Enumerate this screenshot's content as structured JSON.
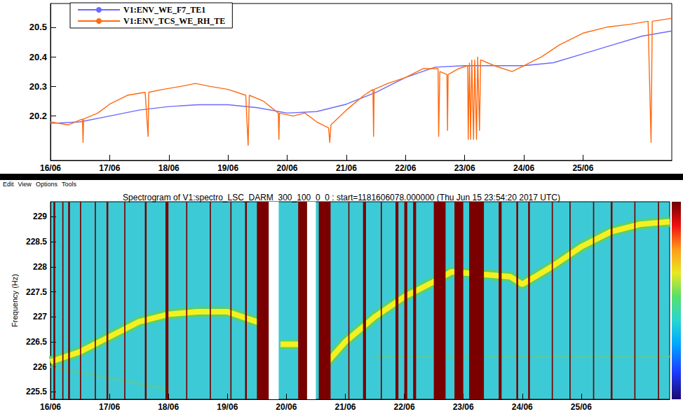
{
  "menu": [
    "Edit",
    "View",
    "Options",
    "Tools"
  ],
  "chart_data": [
    {
      "type": "line",
      "xlim": [
        16,
        26.5
      ],
      "xticks": [
        {
          "value": 16,
          "label": "16/06"
        },
        {
          "value": 17,
          "label": "17/06"
        },
        {
          "value": 18,
          "label": "18/06"
        },
        {
          "value": 19,
          "label": "19/06"
        },
        {
          "value": 20,
          "label": "20/06"
        },
        {
          "value": 21,
          "label": "21/06"
        },
        {
          "value": 22,
          "label": "22/06"
        },
        {
          "value": 23,
          "label": "23/06"
        },
        {
          "value": 24,
          "label": "24/06"
        },
        {
          "value": 25,
          "label": "25/06"
        }
      ],
      "ylim": [
        20.05,
        20.58
      ],
      "yticks": [
        20.2,
        20.3,
        20.4,
        20.5
      ],
      "grid": false,
      "legend": "top-left",
      "series": [
        {
          "name": "V1:ENV_WE_F7_TE1",
          "color": "#6a6aff",
          "x": [
            16.0,
            16.5,
            17.0,
            17.5,
            18.0,
            18.5,
            19.0,
            19.5,
            20.0,
            20.5,
            21.0,
            21.5,
            22.0,
            22.5,
            23.0,
            23.5,
            24.0,
            24.5,
            25.0,
            25.5,
            26.0,
            26.5
          ],
          "values": [
            20.175,
            20.18,
            20.2,
            20.22,
            20.232,
            20.238,
            20.238,
            20.228,
            20.21,
            20.215,
            20.24,
            20.28,
            20.33,
            20.365,
            20.37,
            20.37,
            20.37,
            20.38,
            20.41,
            20.44,
            20.47,
            20.487
          ]
        },
        {
          "name": "V1:ENV_TCS_WE_RH_TE",
          "color": "#ff6a10",
          "x": [
            16.0,
            16.3,
            16.54,
            16.55,
            16.56,
            16.8,
            17.0,
            17.3,
            17.6,
            17.65,
            17.66,
            17.9,
            18.2,
            18.45,
            18.7,
            19.0,
            19.3,
            19.34,
            19.36,
            19.6,
            19.85,
            19.86,
            19.87,
            20.1,
            20.3,
            20.5,
            20.7,
            20.72,
            20.74,
            21.0,
            21.3,
            21.45,
            21.46,
            21.47,
            21.7,
            22.0,
            22.3,
            22.55,
            22.56,
            22.58,
            22.7,
            22.71,
            22.72,
            22.9,
            23.05,
            23.06,
            23.08,
            23.1,
            23.12,
            23.15,
            23.17,
            23.2,
            23.22,
            23.25,
            23.27,
            23.5,
            23.8,
            24.0,
            24.3,
            24.6,
            25.0,
            25.4,
            25.8,
            26.1,
            26.15,
            26.17,
            26.5
          ],
          "values": [
            20.18,
            20.17,
            20.19,
            20.11,
            20.19,
            20.21,
            20.24,
            20.27,
            20.28,
            20.13,
            20.28,
            20.29,
            20.3,
            20.31,
            20.3,
            20.29,
            20.27,
            20.1,
            20.27,
            20.25,
            20.21,
            20.12,
            20.21,
            20.2,
            20.21,
            20.18,
            20.16,
            20.11,
            20.17,
            20.22,
            20.27,
            20.29,
            20.13,
            20.29,
            20.31,
            20.33,
            20.36,
            20.36,
            20.13,
            20.35,
            20.34,
            20.15,
            20.34,
            20.36,
            20.37,
            20.12,
            20.38,
            20.12,
            20.39,
            20.12,
            20.39,
            20.12,
            20.4,
            20.15,
            20.39,
            20.37,
            20.35,
            20.37,
            20.4,
            20.44,
            20.48,
            20.5,
            20.51,
            20.52,
            20.11,
            20.52,
            20.53
          ]
        }
      ]
    },
    {
      "type": "spectrogram",
      "title": "Spectrogram of V1:spectro_LSC_DARM_300_100_0_0 : start=1181606078.000000 (Thu Jun 15 23:54:20 2017 UTC)",
      "y_label": "Frequency (Hz)",
      "color": "#3ccbd6",
      "xlim": [
        16,
        26.5
      ],
      "xticks": [
        {
          "value": 16,
          "label": "16/06"
        },
        {
          "value": 17,
          "label": "17/06"
        },
        {
          "value": 18,
          "label": "18/06"
        },
        {
          "value": 19,
          "label": "19/06"
        },
        {
          "value": 20,
          "label": "20/06"
        },
        {
          "value": 21,
          "label": "21/06"
        },
        {
          "value": 22,
          "label": "22/06"
        },
        {
          "value": 23,
          "label": "23/06"
        },
        {
          "value": 24,
          "label": "24/06"
        },
        {
          "value": 25,
          "label": "25/06"
        }
      ],
      "ylim": [
        225.35,
        229.3
      ],
      "yticks": [
        225.5,
        226,
        226.5,
        227,
        227.5,
        228,
        228.5,
        229
      ],
      "grid": false,
      "tracks": [
        {
          "color": "#f5f020",
          "x": [
            16.0,
            16.5,
            17.0,
            17.5,
            18.0,
            18.5,
            19.0,
            19.5,
            19.75,
            19.8,
            19.9,
            20.2,
            20.3,
            20.7,
            21.0,
            21.5,
            22.0,
            22.5,
            22.8,
            23.3,
            23.8,
            24.0,
            24.5,
            25.0,
            25.5,
            26.0,
            26.5
          ],
          "values": [
            226.1,
            226.3,
            226.6,
            226.9,
            227.05,
            227.1,
            227.1,
            226.9,
            226.85,
            null,
            226.45,
            226.45,
            null,
            226.1,
            226.5,
            227.0,
            227.4,
            227.7,
            227.9,
            227.85,
            227.8,
            227.65,
            228.0,
            228.4,
            228.7,
            228.85,
            228.9
          ]
        },
        {
          "color": "#5cc898",
          "x": [
            16.0,
            18.0
          ],
          "values": [
            226.0,
            225.55
          ]
        },
        {
          "color": "#5cc898",
          "x": [
            21.5,
            26.5
          ],
          "values": [
            226.2,
            226.2
          ]
        }
      ],
      "bands": [
        {
          "color": "#ffffff",
          "intervals": [
            [
              19.7,
              19.87
            ],
            [
              20.35,
              20.5
            ]
          ]
        },
        {
          "color": "#7a0000",
          "intervals": [
            [
              16.05,
              16.08
            ],
            [
              16.2,
              16.22
            ],
            [
              16.3,
              16.33
            ],
            [
              16.5,
              16.52
            ],
            [
              16.75,
              16.77
            ],
            [
              16.95,
              16.98
            ],
            [
              17.25,
              17.27
            ],
            [
              17.6,
              17.63
            ],
            [
              17.95,
              18.0
            ],
            [
              18.3,
              18.32
            ],
            [
              18.7,
              18.72
            ],
            [
              19.05,
              19.07
            ],
            [
              19.3,
              19.33
            ],
            [
              19.5,
              19.7
            ],
            [
              20.2,
              20.35
            ],
            [
              20.55,
              20.75
            ],
            [
              21.05,
              21.07
            ],
            [
              21.3,
              21.35
            ],
            [
              21.6,
              21.62
            ],
            [
              21.85,
              21.9
            ],
            [
              22.0,
              22.05
            ],
            [
              22.15,
              22.2
            ],
            [
              22.5,
              22.7
            ],
            [
              22.85,
              23.0
            ],
            [
              23.1,
              23.35
            ],
            [
              23.6,
              23.65
            ],
            [
              23.9,
              23.93
            ],
            [
              24.1,
              24.13
            ],
            [
              24.5,
              24.52
            ],
            [
              24.8,
              24.82
            ],
            [
              25.2,
              25.22
            ],
            [
              25.5,
              25.53
            ],
            [
              25.9,
              25.92
            ],
            [
              26.3,
              26.32
            ]
          ]
        }
      ]
    }
  ]
}
